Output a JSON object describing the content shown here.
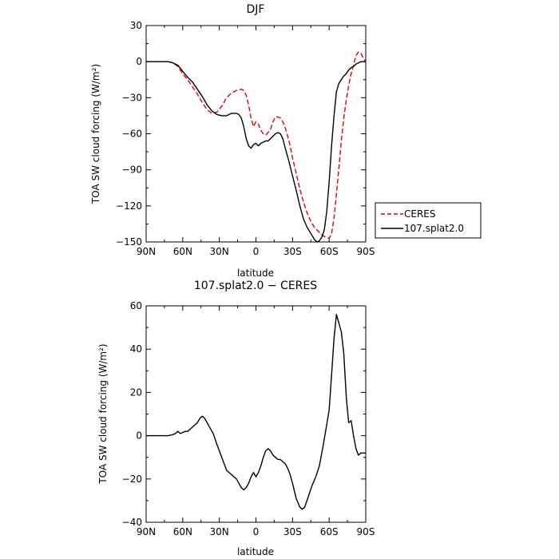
{
  "colors": {
    "ceres": "#e60000",
    "model": "#000000",
    "axis": "#000000"
  },
  "chart_data": [
    {
      "type": "line",
      "title": "DJF",
      "xlabel": "latitude",
      "ylabel": "TOA SW cloud forcing (W/m²)",
      "x_tick_labels": [
        "90N",
        "60N",
        "30N",
        "0",
        "30S",
        "60S",
        "90S"
      ],
      "x_ticks": [
        90,
        60,
        30,
        0,
        -30,
        -60,
        -90
      ],
      "xlim": [
        90,
        -90
      ],
      "ylim": [
        -150,
        30
      ],
      "y_ticks": [
        -150,
        -120,
        -90,
        -60,
        -30,
        0,
        30
      ],
      "y_tick_labels": [
        "−150",
        "−120",
        "−90",
        "−60",
        "−30",
        "0",
        "30"
      ],
      "grid": false,
      "legend_position": "right",
      "series": [
        {
          "name": "CERES",
          "style": "dashed",
          "color": "#e60000",
          "x": [
            90,
            84,
            78,
            72,
            68,
            64,
            60,
            56,
            52,
            48,
            44,
            40,
            36,
            32,
            28,
            24,
            20,
            16,
            12,
            10,
            8,
            6,
            4,
            2,
            0,
            -2,
            -4,
            -6,
            -8,
            -10,
            -12,
            -14,
            -16,
            -18,
            -20,
            -22,
            -24,
            -26,
            -28,
            -30,
            -33,
            -36,
            -39,
            -42,
            -45,
            -48,
            -51,
            -54,
            -57,
            -60,
            -62,
            -64,
            -66,
            -68,
            -70,
            -72,
            -74,
            -76,
            -78,
            -80,
            -82,
            -84,
            -86,
            -88,
            -90
          ],
          "y": [
            0,
            0,
            0,
            0,
            -1,
            -4,
            -10,
            -15,
            -21,
            -27,
            -34,
            -40,
            -43,
            -42,
            -37,
            -30,
            -26,
            -24,
            -23,
            -24,
            -28,
            -36,
            -47,
            -54,
            -50,
            -52,
            -57,
            -60,
            -61,
            -59,
            -56,
            -50,
            -46,
            -46,
            -47,
            -50,
            -55,
            -62,
            -70,
            -80,
            -93,
            -106,
            -117,
            -126,
            -133,
            -138,
            -141,
            -144,
            -146,
            -147,
            -143,
            -130,
            -110,
            -88,
            -66,
            -47,
            -32,
            -20,
            -10,
            -3,
            5,
            8,
            7,
            3,
            0
          ]
        },
        {
          "name": "107.splat2.0",
          "style": "solid",
          "color": "#000000",
          "x": [
            90,
            84,
            78,
            72,
            68,
            64,
            60,
            56,
            52,
            48,
            44,
            40,
            36,
            32,
            28,
            26,
            24,
            22,
            20,
            18,
            16,
            14,
            12,
            10,
            8,
            6,
            4,
            2,
            0,
            -2,
            -4,
            -6,
            -8,
            -10,
            -12,
            -14,
            -16,
            -18,
            -20,
            -22,
            -24,
            -27,
            -30,
            -33,
            -36,
            -39,
            -42,
            -45,
            -48,
            -50,
            -52,
            -54,
            -56,
            -58,
            -60,
            -62,
            -64,
            -66,
            -68,
            -70,
            -72,
            -74,
            -76,
            -78,
            -80,
            -82,
            -84,
            -86,
            -88,
            -90
          ],
          "y": [
            0,
            0,
            0,
            0,
            -1,
            -3,
            -8,
            -13,
            -17,
            -23,
            -29,
            -36,
            -41,
            -44,
            -45,
            -45,
            -45,
            -44,
            -43,
            -43,
            -43,
            -44,
            -47,
            -54,
            -64,
            -70,
            -72,
            -69,
            -68,
            -70,
            -68,
            -67,
            -66,
            -66,
            -64,
            -62,
            -60,
            -59,
            -60,
            -64,
            -72,
            -83,
            -95,
            -107,
            -120,
            -131,
            -138,
            -143,
            -148,
            -150,
            -149,
            -146,
            -140,
            -125,
            -100,
            -70,
            -45,
            -25,
            -18,
            -15,
            -12,
            -10,
            -7,
            -5,
            -4,
            -2,
            -1,
            0,
            0,
            0
          ]
        }
      ]
    },
    {
      "type": "line",
      "title": "107.splat2.0 − CERES",
      "xlabel": "latitude",
      "ylabel": "TOA SW cloud forcing (W/m²)",
      "x_tick_labels": [
        "90N",
        "60N",
        "30N",
        "0",
        "30S",
        "60S",
        "90S"
      ],
      "x_ticks": [
        90,
        60,
        30,
        0,
        -30,
        -60,
        -90
      ],
      "xlim": [
        90,
        -90
      ],
      "ylim": [
        -40,
        60
      ],
      "y_ticks": [
        -40,
        -20,
        0,
        20,
        40,
        60
      ],
      "y_tick_labels": [
        "−40",
        "−20",
        "0",
        "20",
        "40",
        "60"
      ],
      "grid": false,
      "series": [
        {
          "name": "",
          "style": "solid",
          "color": "#000000",
          "x": [
            90,
            84,
            78,
            72,
            68,
            66,
            64,
            62,
            60,
            58,
            56,
            54,
            52,
            50,
            48,
            46,
            44,
            42,
            40,
            38,
            35,
            32,
            28,
            24,
            20,
            16,
            14,
            12,
            10,
            8,
            6,
            4,
            2,
            0,
            -2,
            -4,
            -6,
            -8,
            -10,
            -12,
            -14,
            -16,
            -18,
            -20,
            -22,
            -24,
            -26,
            -28,
            -30,
            -33,
            -36,
            -38,
            -40,
            -43,
            -46,
            -49,
            -52,
            -55,
            -58,
            -60,
            -62,
            -64,
            -66,
            -68,
            -70,
            -72,
            -74,
            -76,
            -78,
            -80,
            -82,
            -84,
            -86,
            -88,
            -90
          ],
          "y": [
            0,
            0,
            0,
            0,
            0.5,
            1,
            2,
            1,
            1.5,
            2,
            2,
            3,
            4,
            5,
            6,
            8,
            9,
            8,
            6,
            4,
            1,
            -4,
            -10,
            -16,
            -18,
            -20,
            -22,
            -24,
            -25,
            -24,
            -22,
            -19,
            -17,
            -19,
            -17,
            -14,
            -10,
            -7,
            -6,
            -7,
            -9,
            -10,
            -11,
            -11,
            -12,
            -13,
            -15,
            -18,
            -22,
            -29,
            -33,
            -34,
            -33,
            -28,
            -23,
            -19,
            -14,
            -5,
            5,
            12,
            28,
            45,
            56,
            52,
            48,
            38,
            18,
            6,
            7,
            0,
            -6,
            -9,
            -8,
            -8,
            -8
          ]
        }
      ]
    }
  ]
}
